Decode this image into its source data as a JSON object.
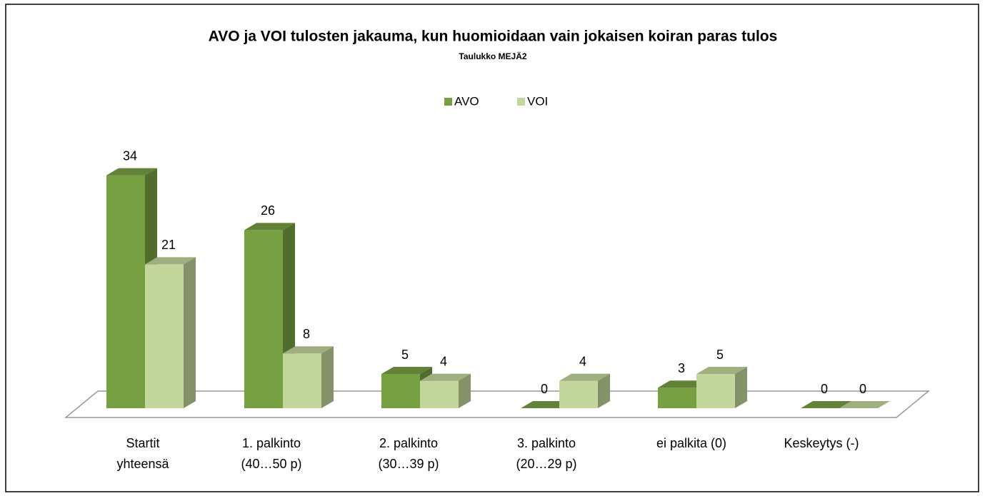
{
  "chart_data": {
    "type": "bar3d",
    "title": "AVO ja VOI tulosten jakauma, kun huomioidaan vain jokaisen koiran paras tulos",
    "subtitle": "Taulukko MEJÄ2",
    "categories": [
      [
        "Startit",
        "yhteensä"
      ],
      [
        "1. palkinto",
        "(40…50 p)"
      ],
      [
        "2. palkinto",
        "(30…39 p)"
      ],
      [
        "3. palkinto",
        "(20…29 p)"
      ],
      [
        "ei palkita (0)"
      ],
      [
        "Keskeytys (-)"
      ]
    ],
    "series": [
      {
        "name": "AVO",
        "color": "#77a043",
        "values": [
          34,
          26,
          5,
          0,
          3,
          0
        ]
      },
      {
        "name": "VOI",
        "color": "#c3d69b",
        "values": [
          21,
          8,
          4,
          4,
          5,
          0
        ]
      }
    ],
    "legend": "top"
  }
}
